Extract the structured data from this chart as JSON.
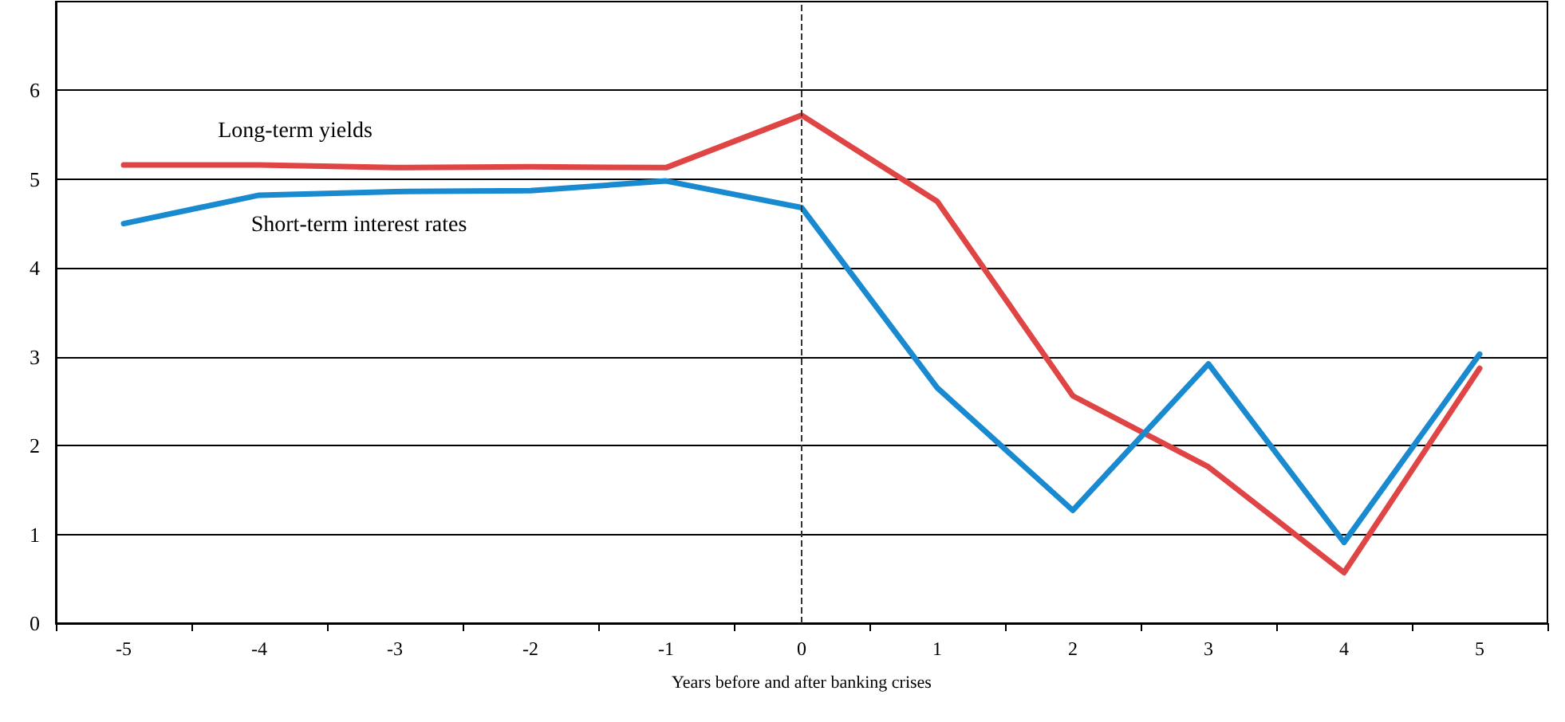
{
  "chart_data": {
    "type": "line",
    "xlabel": "Years before and after banking crises",
    "categories": [
      "-5",
      "-4",
      "-3",
      "-2",
      "-1",
      "0",
      "1",
      "2",
      "3",
      "4",
      "5"
    ],
    "series": [
      {
        "name": "Long-term yields",
        "color": "#e04545",
        "values": [
          5.16,
          5.16,
          5.13,
          5.14,
          5.13,
          5.72,
          4.75,
          2.56,
          1.76,
          0.57,
          2.87
        ]
      },
      {
        "name": "Short-term interest rates",
        "color": "#1a8ad0",
        "values": [
          4.5,
          4.82,
          4.86,
          4.87,
          4.98,
          4.68,
          2.65,
          1.27,
          2.92,
          0.91,
          3.03
        ]
      }
    ],
    "ylim": [
      0,
      7
    ],
    "yticks": [
      0,
      1,
      2,
      3,
      4,
      5,
      6
    ],
    "grid": "y",
    "legend": false,
    "marker": "none",
    "line_style": "solid",
    "ref_lines": [
      {
        "axis": "x",
        "value": "0",
        "color": "#333333",
        "line_style": "dashed"
      }
    ]
  }
}
